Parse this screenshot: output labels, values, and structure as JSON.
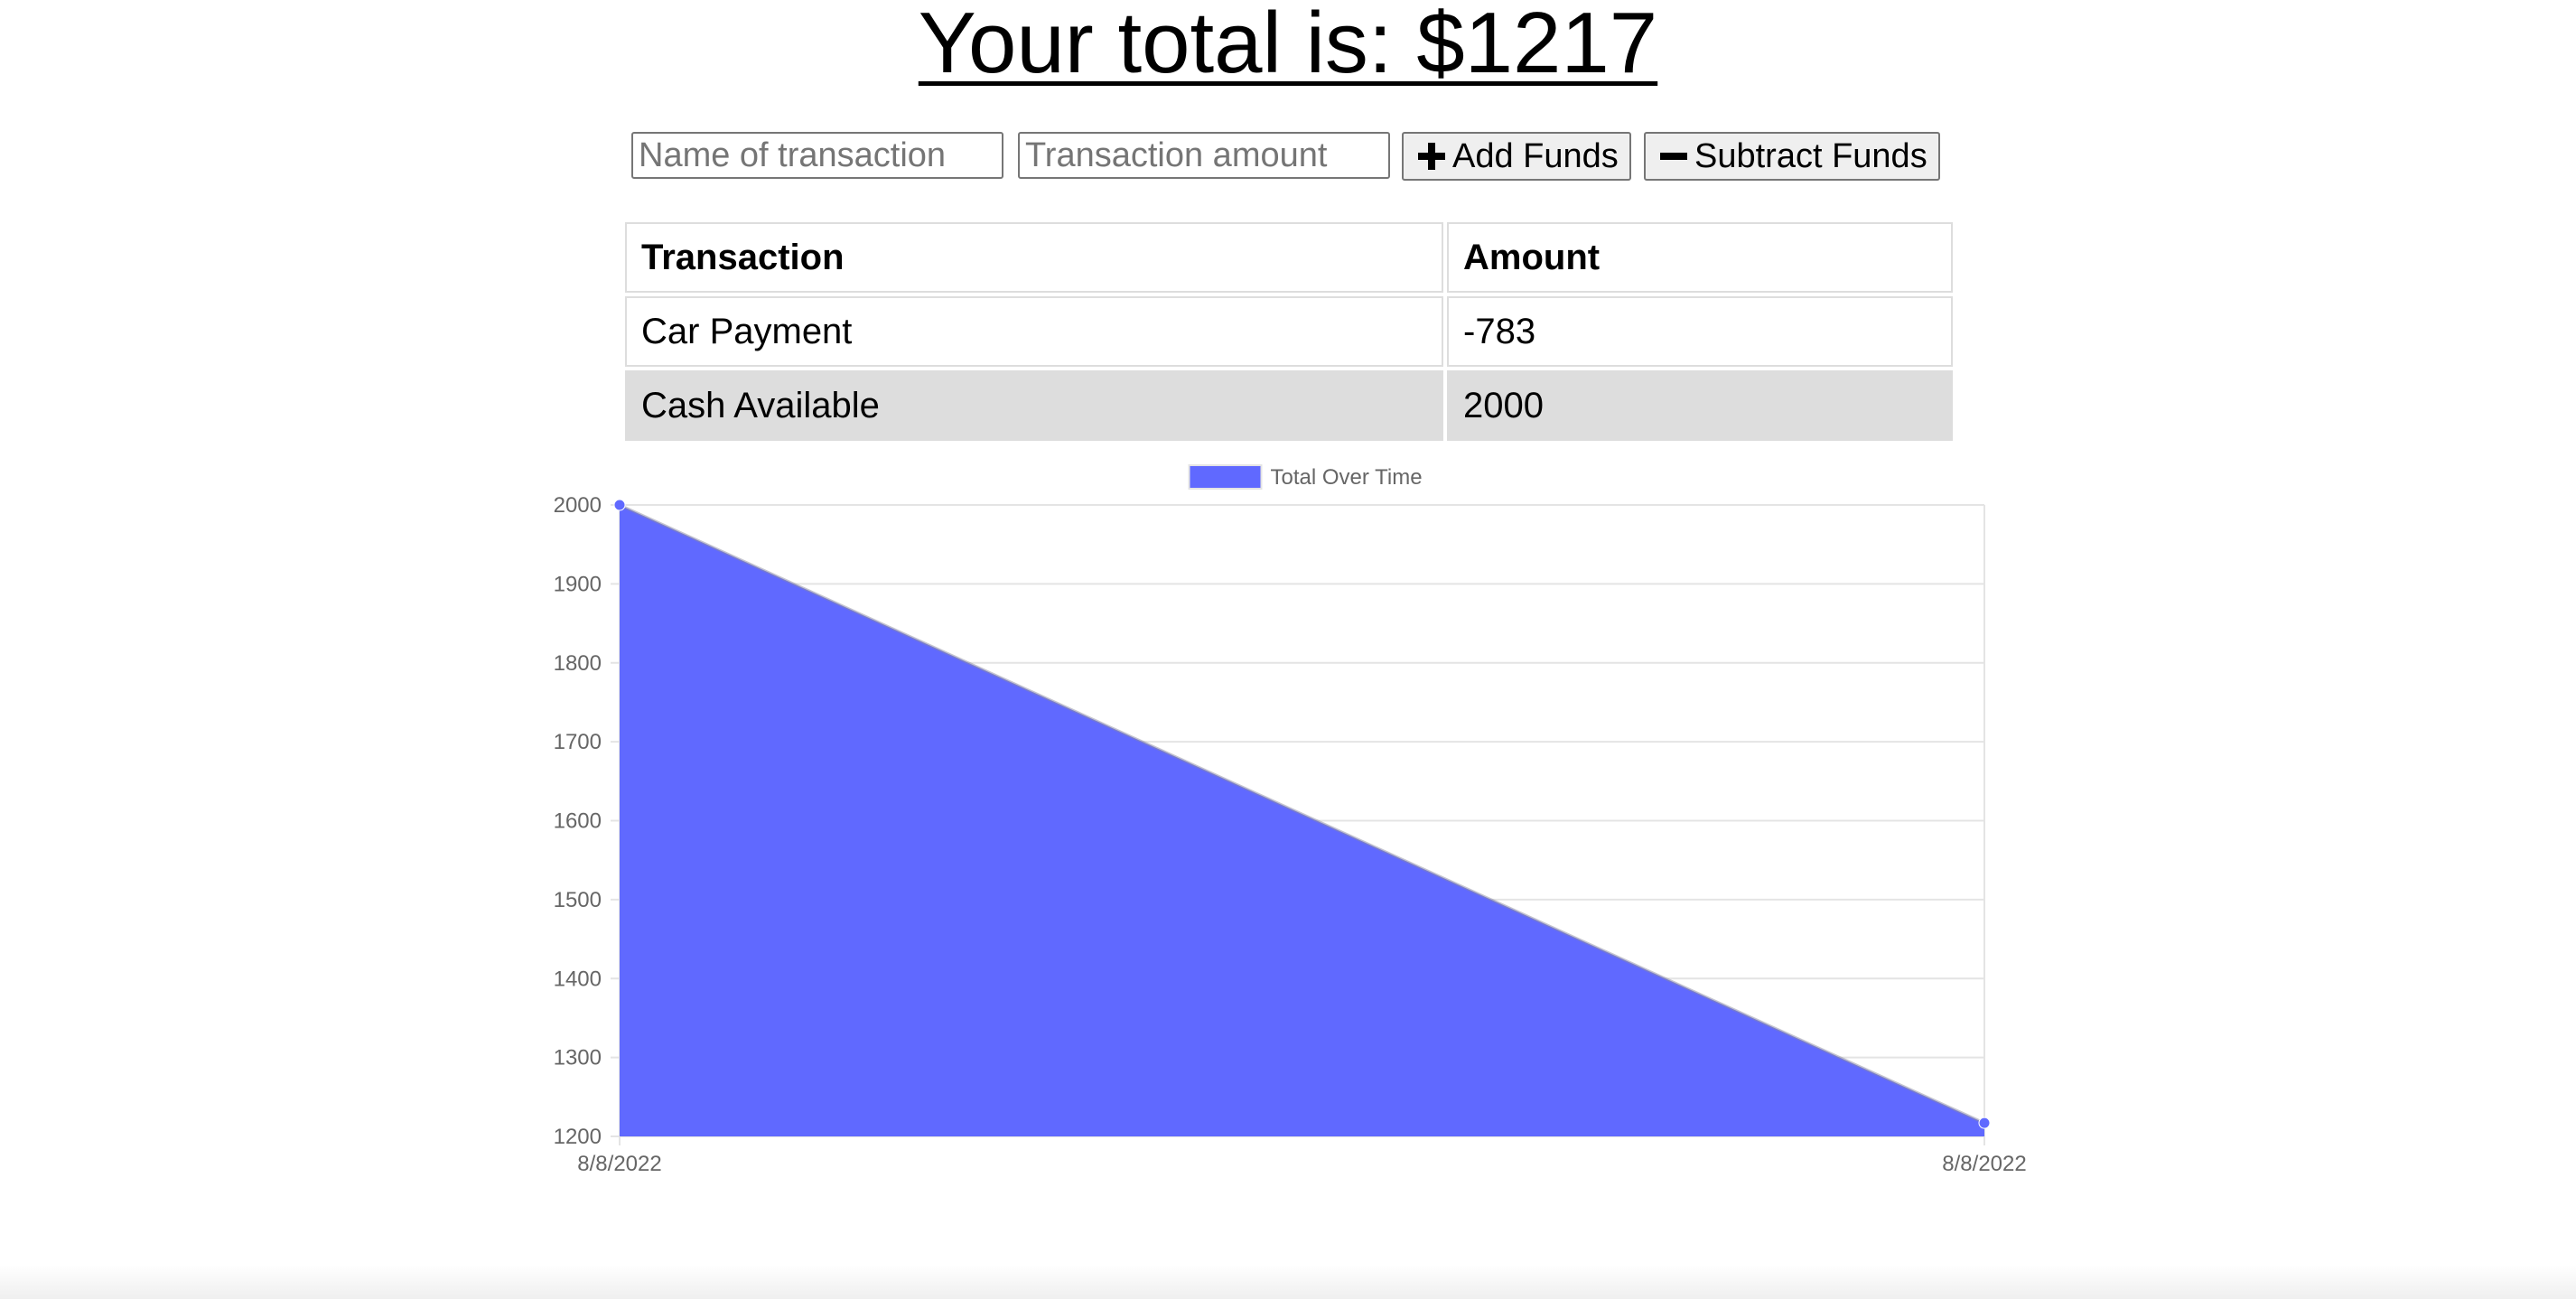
{
  "heading": "Your total is: $1217",
  "form": {
    "name_placeholder": "Name of transaction",
    "amount_placeholder": "Transaction amount",
    "add_label": "Add Funds",
    "subtract_label": "Subtract Funds",
    "add_icon": "plus-icon",
    "subtract_icon": "minus-icon"
  },
  "table": {
    "headers": [
      "Transaction",
      "Amount"
    ],
    "rows": [
      {
        "name": "Car Payment",
        "amount": "-783"
      },
      {
        "name": "Cash Available",
        "amount": "2000"
      }
    ]
  },
  "chart_data": {
    "type": "area",
    "title": "",
    "xlabel": "",
    "ylabel": "",
    "x": [
      "8/8/2022",
      "8/8/2022"
    ],
    "series": [
      {
        "name": "Total Over Time",
        "values": [
          2000,
          1217
        ],
        "color": "#6069ff"
      }
    ],
    "ylim": [
      1200,
      2000
    ],
    "yticks": [
      1200,
      1300,
      1400,
      1500,
      1600,
      1700,
      1800,
      1900,
      2000
    ],
    "grid": true,
    "legend": "top-center"
  }
}
